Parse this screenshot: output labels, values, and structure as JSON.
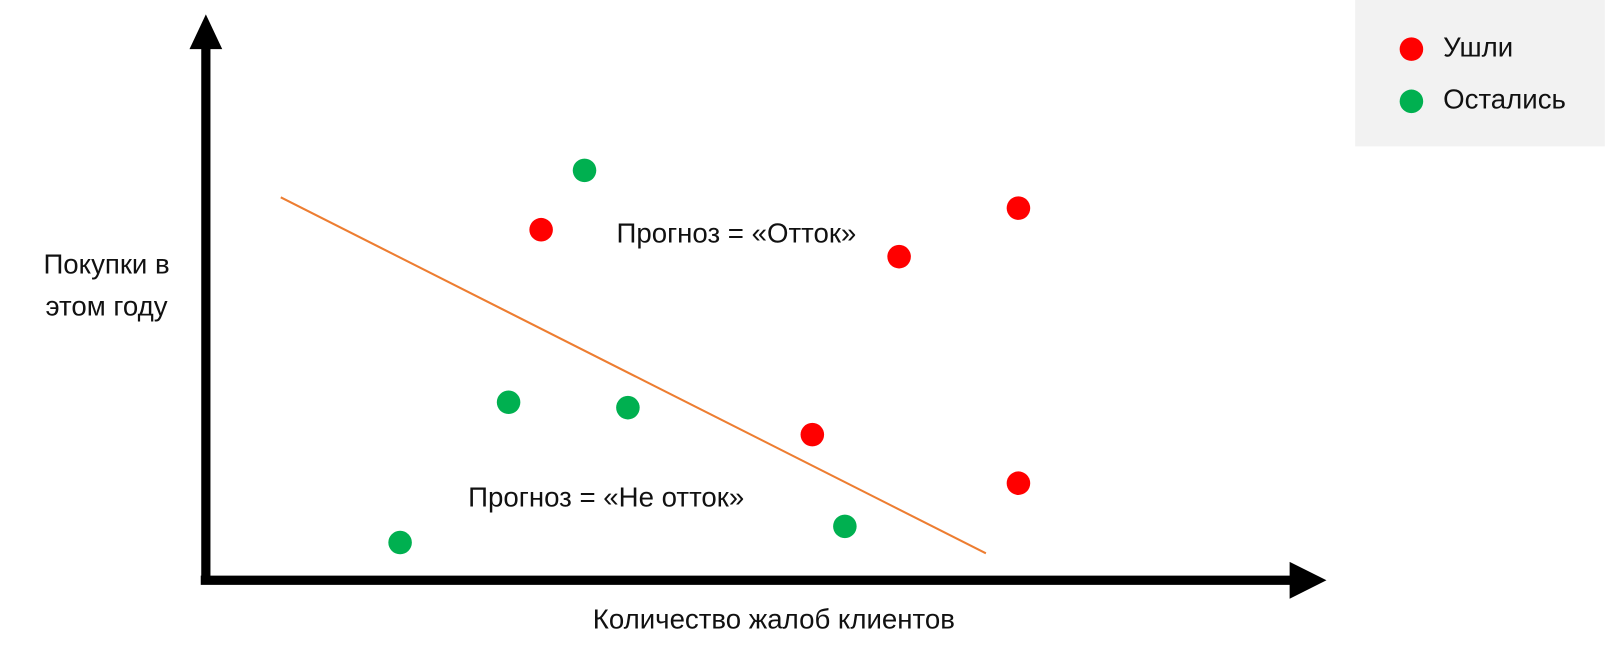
{
  "chart_data": {
    "type": "scatter",
    "x_label": "Количество жалоб клиентов",
    "y_label": [
      "Покупки в",
      "этом году"
    ],
    "xlim": [
      0,
      10
    ],
    "ylim": [
      0,
      10
    ],
    "legend": "top-right",
    "series": [
      {
        "name": "Ушли",
        "color": "#ff0000",
        "x": [
          3.1,
          6.4,
          7.5,
          5.6,
          7.5
        ],
        "y": [
          6.5,
          6.0,
          6.9,
          2.7,
          1.8
        ]
      },
      {
        "name": "Остались",
        "color": "#00b050",
        "x": [
          3.5,
          2.8,
          3.9,
          1.8,
          5.9
        ],
        "y": [
          7.6,
          3.3,
          3.2,
          0.7,
          1.0
        ]
      }
    ],
    "boundary": {
      "color": "#ed7d31",
      "x": [
        0.7,
        7.2
      ],
      "y": [
        7.1,
        0.5
      ]
    },
    "annotations": [
      {
        "text": "Прогноз = «Отток»",
        "x": 4.9,
        "y": 6.4
      },
      {
        "text": "Прогноз = «Не отток»",
        "x": 3.7,
        "y": 1.5
      }
    ]
  }
}
